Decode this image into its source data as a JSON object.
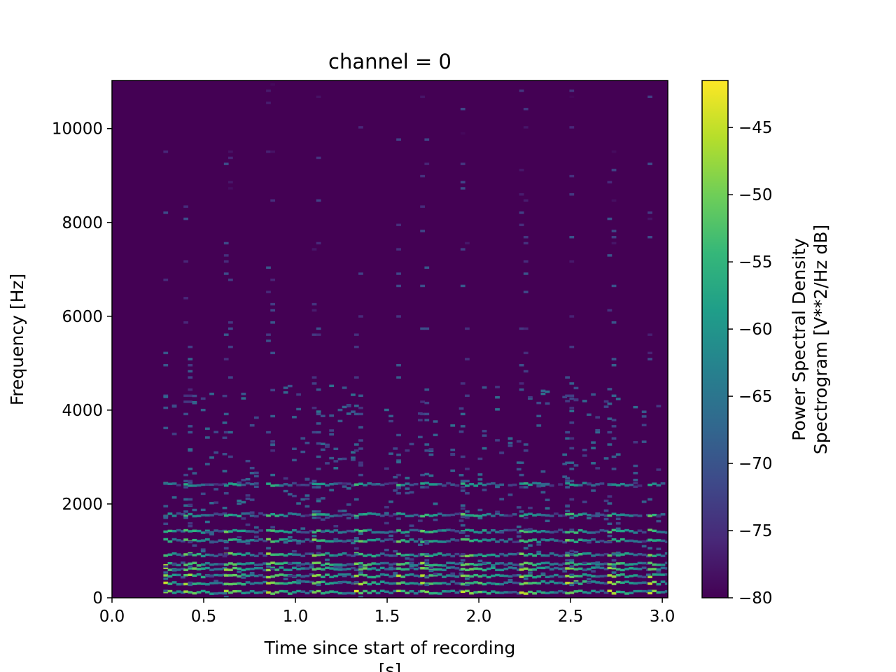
{
  "chart_data": {
    "type": "heatmap",
    "title": "channel = 0",
    "xlabel_line1": "Time since start of recording",
    "xlabel_line2": "[s]",
    "ylabel": "Frequency [Hz]",
    "xlim": [
      0.0,
      3.03
    ],
    "ylim": [
      0,
      11025
    ],
    "x_ticks": [
      0.0,
      0.5,
      1.0,
      1.5,
      2.0,
      2.5,
      3.0
    ],
    "x_tick_labels": [
      "0.0",
      "0.5",
      "1.0",
      "1.5",
      "2.0",
      "2.5",
      "3.0"
    ],
    "y_ticks": [
      0,
      2000,
      4000,
      6000,
      8000,
      10000
    ],
    "y_tick_labels": [
      "0",
      "2000",
      "4000",
      "6000",
      "8000",
      "10000"
    ],
    "colorbar": {
      "label_line1": "Power Spectral Density",
      "label_line2": "Spectrogram [V**2/Hz dB]",
      "range": [
        -80,
        -41.5
      ],
      "ticks": [
        -80,
        -75,
        -70,
        -65,
        -60,
        -55,
        -50,
        -45
      ],
      "tick_labels": [
        "−80",
        "−75",
        "−70",
        "−65",
        "−60",
        "−55",
        "−50",
        "−45"
      ],
      "colormap": "viridis"
    },
    "grid": false,
    "note_onsets_s": [
      0.28,
      0.39,
      0.61,
      0.84,
      1.09,
      1.32,
      1.55,
      1.68,
      1.9,
      2.22,
      2.47,
      2.7,
      2.92
    ],
    "harmonic_bands_hz": [
      100,
      300,
      450,
      600,
      700,
      900,
      1200,
      1400,
      1750,
      2400
    ]
  },
  "colors": {
    "background_min": "#440154",
    "viridis_stops": [
      "#440154",
      "#482878",
      "#3e4989",
      "#31688e",
      "#26828e",
      "#1f9e89",
      "#35b779",
      "#6ece58",
      "#b5de2b",
      "#fde725"
    ]
  }
}
